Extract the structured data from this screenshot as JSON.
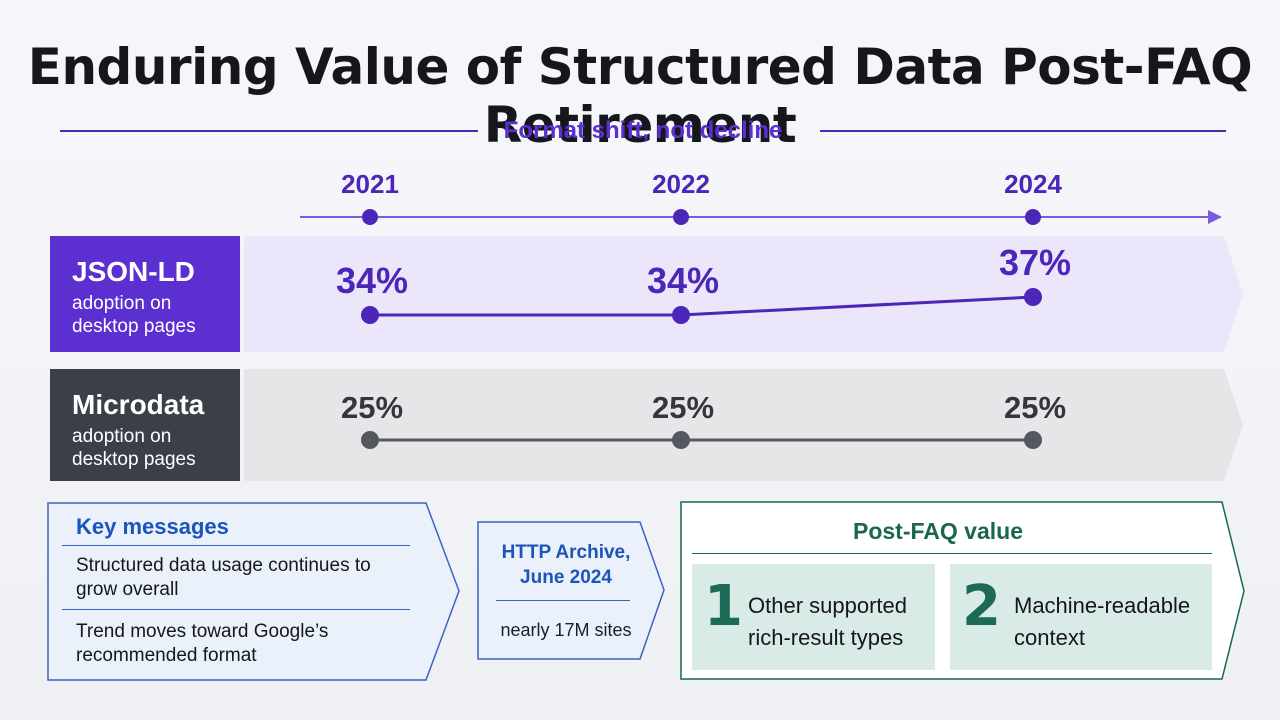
{
  "title": "Enduring Value of Structured Data Post-FAQ Retirement",
  "subtitle": "Format shift, not decline",
  "timeline": {
    "years": [
      "2021",
      "2022",
      "2024"
    ]
  },
  "rows": [
    {
      "name": "JSON-LD",
      "desc": "adoption on desktop pages",
      "values": [
        "34%",
        "34%",
        "37%"
      ]
    },
    {
      "name": "Microdata",
      "desc": "adoption on desktop pages",
      "values": [
        "25%",
        "25%",
        "25%"
      ]
    }
  ],
  "chart_data": {
    "type": "line",
    "x": [
      "2021",
      "2022",
      "2024"
    ],
    "series": [
      {
        "name": "JSON-LD",
        "values": [
          34,
          34,
          37
        ]
      },
      {
        "name": "Microdata",
        "values": [
          25,
          25,
          25
        ]
      }
    ]
  },
  "key_messages": {
    "title": "Key messages",
    "items": [
      "Structured data usage continues to grow overall",
      "Trend moves toward Google’s recommended format"
    ]
  },
  "source": {
    "title": "HTTP Archive, June 2024",
    "sites": "nearly 17M sites"
  },
  "post_faq": {
    "title": "Post-FAQ value",
    "cards": [
      {
        "number": "1",
        "text": "Other supported rich-result types"
      },
      {
        "number": "2",
        "text": "Machine-readable context"
      }
    ]
  },
  "colors": {
    "accent": "#5b2fd0",
    "jsonld_band": "#ebe6fa",
    "jsonld_label": "#5b2fd0",
    "microdata_band": "#e6e6e9",
    "microdata_label": "#3b3f48",
    "key_messages": "#1d54b8",
    "post_faq": "#1b6650"
  }
}
